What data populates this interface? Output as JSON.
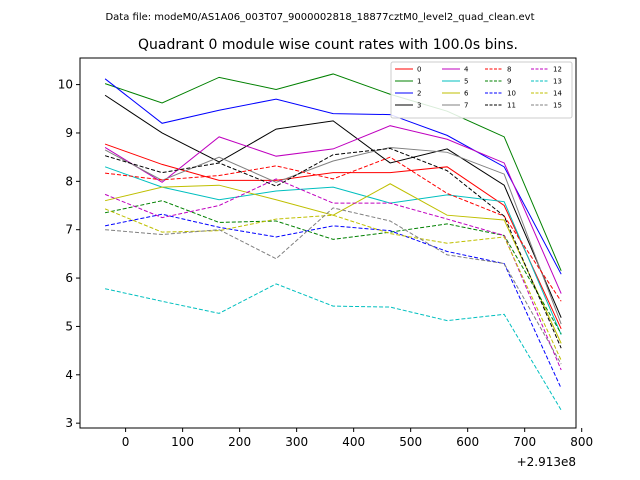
{
  "suptitle": "Data file: modeM0/AS1A06_003T07_9000002818_18877cztM0_level2_quad_clean.evt",
  "chart_data": {
    "type": "line",
    "title": "Quadrant 0 module wise count rates with 100.0s bins.",
    "xlabel": "",
    "ylabel": "",
    "x_offset_label": "+2.913e8",
    "xlim": [
      -80,
      790
    ],
    "ylim": [
      2.9,
      10.55
    ],
    "xticks": [
      0,
      100,
      200,
      300,
      400,
      500,
      600,
      700,
      800
    ],
    "xtick_labels": [
      "0",
      "100",
      "200",
      "300",
      "400",
      "500",
      "600",
      "700",
      "800"
    ],
    "yticks": [
      3,
      4,
      5,
      6,
      7,
      8,
      9,
      10
    ],
    "ytick_labels": [
      "3",
      "4",
      "5",
      "6",
      "7",
      "8",
      "9",
      "10"
    ],
    "grid": false,
    "legend_position": "top-right",
    "x": [
      -36,
      64,
      164,
      264,
      364,
      464,
      564,
      664,
      764
    ],
    "series": [
      {
        "name": "0",
        "color": "#ff0000",
        "dash": "solid",
        "values": [
          8.77,
          8.35,
          8.02,
          8.02,
          8.18,
          8.18,
          8.3,
          7.5,
          4.95
        ]
      },
      {
        "name": "1",
        "color": "#008000",
        "dash": "solid",
        "values": [
          10.02,
          9.62,
          10.15,
          9.9,
          10.22,
          9.8,
          9.45,
          8.92,
          6.15
        ]
      },
      {
        "name": "2",
        "color": "#0000ff",
        "dash": "solid",
        "values": [
          10.12,
          9.2,
          9.47,
          9.7,
          9.4,
          9.38,
          8.95,
          8.3,
          6.08
        ]
      },
      {
        "name": "3",
        "color": "#000000",
        "dash": "solid",
        "values": [
          9.78,
          9.0,
          8.4,
          9.08,
          9.25,
          8.38,
          8.67,
          7.92,
          5.18
        ]
      },
      {
        "name": "4",
        "color": "#bf00bf",
        "dash": "solid",
        "values": [
          8.7,
          7.98,
          8.92,
          8.52,
          8.67,
          9.15,
          8.87,
          8.38,
          5.68
        ]
      },
      {
        "name": "5",
        "color": "#00bfbf",
        "dash": "solid",
        "values": [
          8.3,
          7.88,
          7.62,
          7.8,
          7.88,
          7.55,
          7.72,
          7.58,
          4.83
        ]
      },
      {
        "name": "6",
        "color": "#bfbf00",
        "dash": "solid",
        "values": [
          7.6,
          7.88,
          7.92,
          7.62,
          7.3,
          7.95,
          7.3,
          7.2,
          4.65
        ]
      },
      {
        "name": "7",
        "color": "#808080",
        "dash": "solid",
        "values": [
          8.65,
          8.02,
          8.5,
          7.98,
          8.42,
          8.7,
          8.6,
          8.15,
          5.05
        ]
      },
      {
        "name": "8",
        "color": "#ff0000",
        "dash": "dashed",
        "values": [
          8.17,
          8.03,
          8.12,
          8.32,
          8.05,
          8.5,
          7.75,
          7.28,
          5.52
        ]
      },
      {
        "name": "9",
        "color": "#008000",
        "dash": "dashed",
        "values": [
          7.35,
          7.6,
          7.15,
          7.18,
          6.8,
          6.95,
          7.12,
          6.88,
          4.85
        ]
      },
      {
        "name": "10",
        "color": "#0000ff",
        "dash": "dashed",
        "values": [
          7.08,
          7.32,
          7.05,
          6.85,
          7.08,
          6.98,
          6.55,
          6.3,
          3.72
        ]
      },
      {
        "name": "11",
        "color": "#000000",
        "dash": "dashed",
        "values": [
          8.53,
          8.18,
          8.38,
          7.9,
          8.55,
          8.68,
          8.22,
          7.28,
          4.55
        ]
      },
      {
        "name": "12",
        "color": "#bf00bf",
        "dash": "dashed",
        "values": [
          7.73,
          7.25,
          7.5,
          8.05,
          7.55,
          7.55,
          7.22,
          6.88,
          4.1
        ]
      },
      {
        "name": "13",
        "color": "#00bfbf",
        "dash": "dashed",
        "values": [
          5.78,
          5.52,
          5.27,
          5.88,
          5.42,
          5.4,
          5.12,
          5.25,
          3.27
        ]
      },
      {
        "name": "14",
        "color": "#bfbf00",
        "dash": "dashed",
        "values": [
          7.43,
          6.95,
          6.98,
          7.22,
          7.3,
          6.92,
          6.72,
          6.85,
          4.3
        ]
      },
      {
        "name": "15",
        "color": "#808080",
        "dash": "dashed",
        "values": [
          7.0,
          6.9,
          7.0,
          6.4,
          7.45,
          7.18,
          6.48,
          6.3,
          4.22
        ]
      }
    ]
  }
}
